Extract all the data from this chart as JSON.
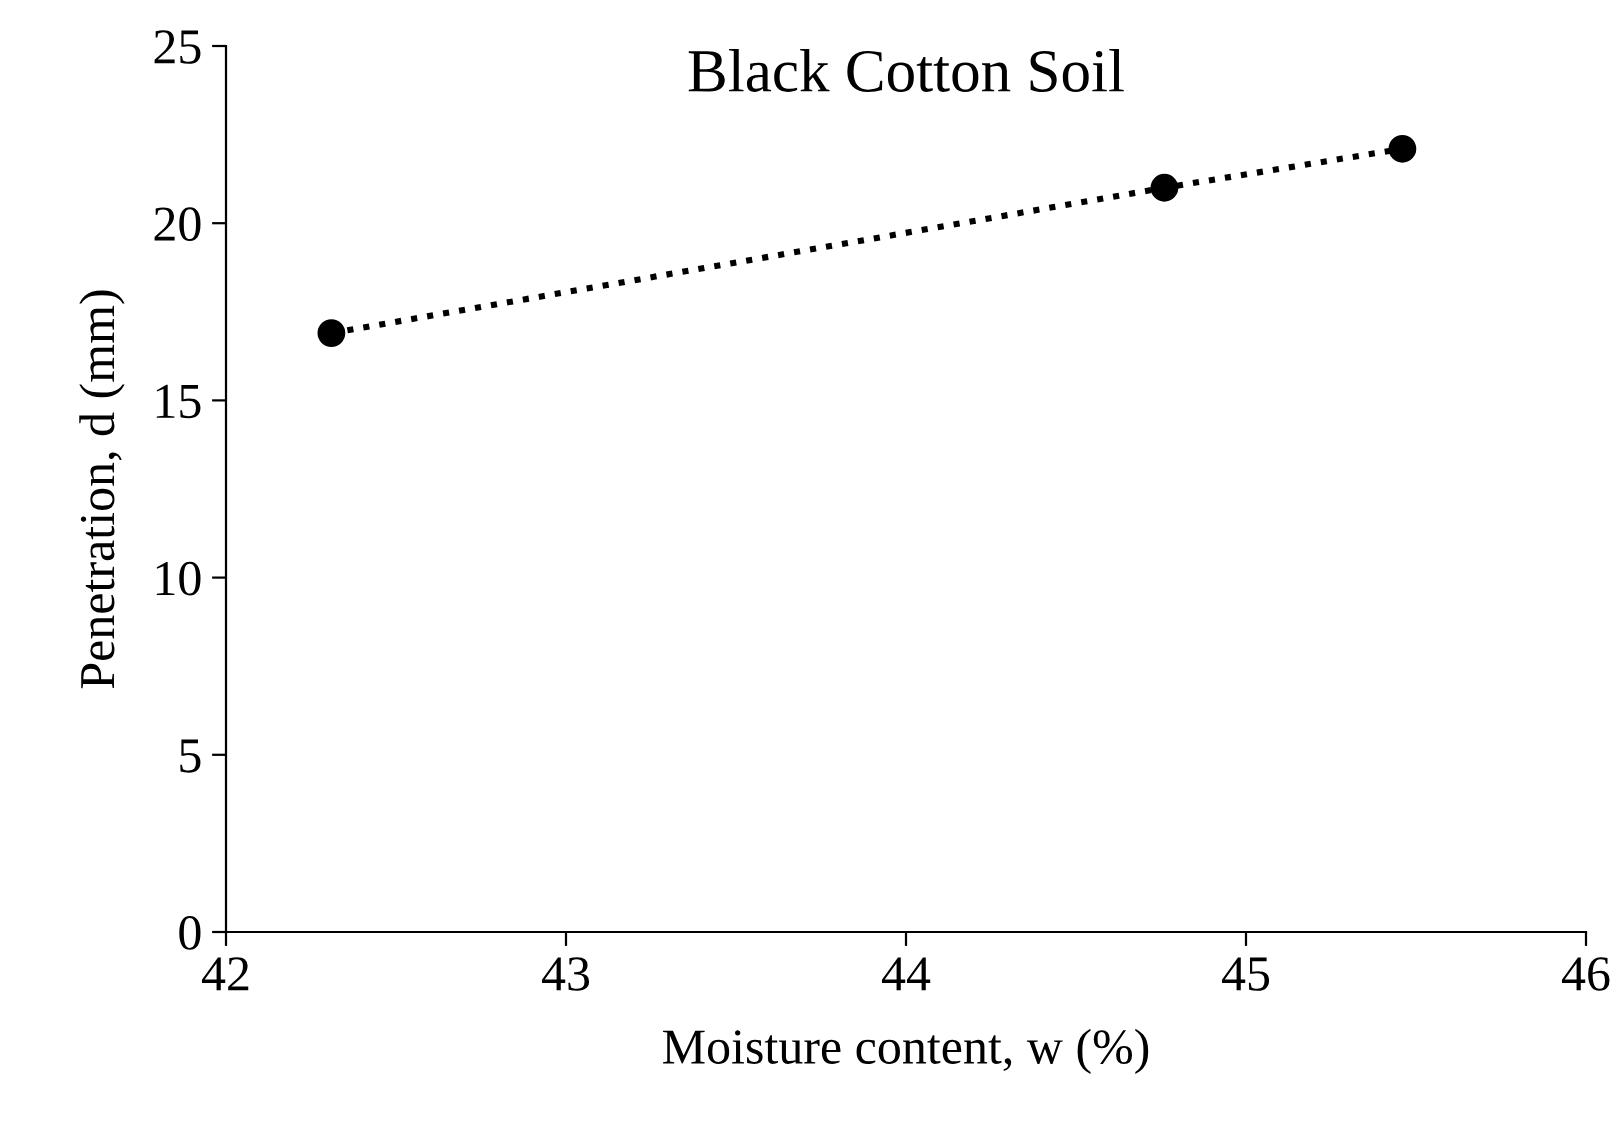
{
  "chart_data": {
    "type": "line",
    "title": "Black Cotton Soil",
    "xlabel": "Moisture content, w (%)",
    "ylabel": "Penetration, d (mm)",
    "x": [
      42.31,
      44.76,
      45.46
    ],
    "series": [
      {
        "color": "#000000",
        "values": [
          16.9,
          21.0,
          22.1
        ]
      }
    ],
    "xlim": [
      42,
      46
    ],
    "ylim": [
      0,
      25
    ],
    "xticks": [
      42,
      43,
      44,
      45,
      46
    ],
    "yticks": [
      0,
      5,
      10,
      15,
      20,
      25
    ],
    "marker": "circle",
    "line_style": "dotted",
    "grid": false,
    "legend": false
  }
}
